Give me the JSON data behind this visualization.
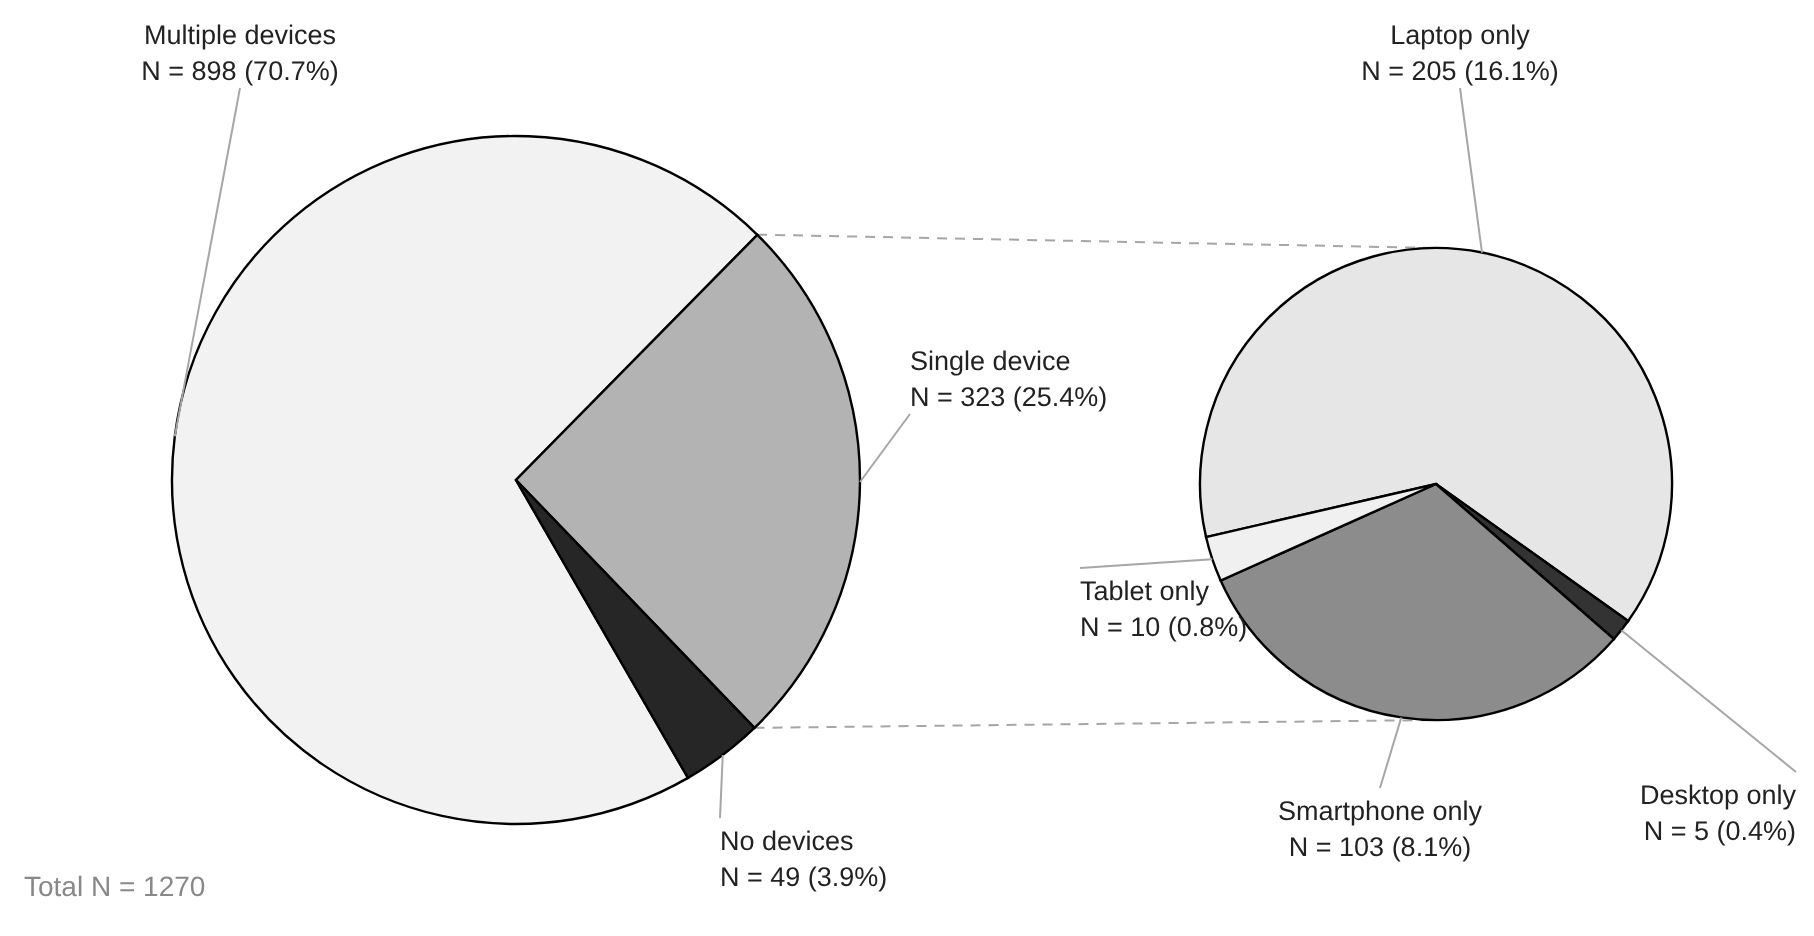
{
  "chart_data": [
    {
      "type": "pie",
      "categories": [
        "Multiple devices",
        "Single device",
        "No devices"
      ],
      "values": [
        898,
        323,
        49
      ],
      "colors": [
        "#f2f2f2",
        "#b3b3b3",
        "#262626"
      ],
      "value_labels": [
        "N = 898 (70.7%)",
        "N = 323 (25.4%)",
        "N = 49 (3.9%)"
      ],
      "annotations": [
        "Total N = 1270"
      ]
    },
    {
      "type": "pie",
      "categories": [
        "Laptop only",
        "Desktop only",
        "Smartphone only",
        "Tablet only"
      ],
      "values": [
        205,
        5,
        103,
        10
      ],
      "colors": [
        "#e6e6e6",
        "#333333",
        "#8c8c8c",
        "#f0f0f0"
      ],
      "value_labels": [
        "N = 205 (16.1%)",
        "N = 5 (0.4%)",
        "N = 103 (8.1%)",
        "N = 10 (0.8%)"
      ]
    }
  ]
}
